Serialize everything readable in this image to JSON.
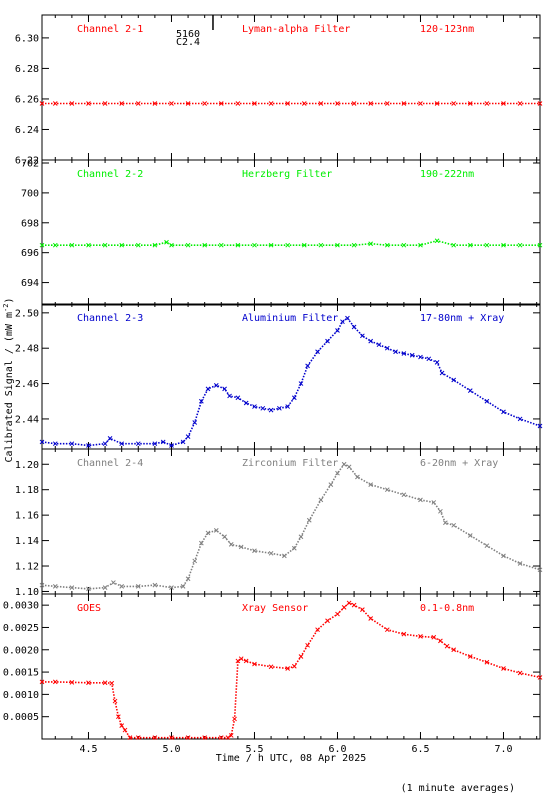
{
  "figure": {
    "xlabel": "Time / h UTC, 08 Apr 2025",
    "ylabel": "Calibrated Signal / (mW m",
    "ylabel_sup": "-2",
    "ylabel_close": ")",
    "footnote": "(1 minute averages)",
    "marker": {
      "label_1": "5160",
      "label_2": "C2.4",
      "x": 5.25
    }
  },
  "chart_data": [
    {
      "type": "scatter",
      "channel": "Channel 2-1",
      "filter": "Lyman-alpha Filter",
      "band": "120-123nm",
      "color": "#ff0000",
      "xlim": [
        4.22,
        7.22
      ],
      "ylim": [
        6.22,
        6.315
      ],
      "yticks": [
        "6.22",
        "6.24",
        "6.26",
        "6.28",
        "6.30"
      ],
      "xticks": [
        "4.5",
        "5.0",
        "5.5",
        "6.0",
        "6.5",
        "7.0"
      ],
      "points": [
        [
          4.22,
          6.257
        ],
        [
          4.3,
          6.257
        ],
        [
          4.4,
          6.257
        ],
        [
          4.5,
          6.257
        ],
        [
          4.6,
          6.257
        ],
        [
          4.7,
          6.257
        ],
        [
          4.8,
          6.257
        ],
        [
          4.9,
          6.257
        ],
        [
          5.0,
          6.257
        ],
        [
          5.1,
          6.257
        ],
        [
          5.2,
          6.257
        ],
        [
          5.3,
          6.257
        ],
        [
          5.4,
          6.257
        ],
        [
          5.5,
          6.257
        ],
        [
          5.6,
          6.257
        ],
        [
          5.7,
          6.257
        ],
        [
          5.8,
          6.257
        ],
        [
          5.9,
          6.257
        ],
        [
          6.0,
          6.257
        ],
        [
          6.1,
          6.257
        ],
        [
          6.2,
          6.257
        ],
        [
          6.3,
          6.257
        ],
        [
          6.4,
          6.257
        ],
        [
          6.5,
          6.257
        ],
        [
          6.6,
          6.257
        ],
        [
          6.7,
          6.257
        ],
        [
          6.8,
          6.257
        ],
        [
          6.9,
          6.257
        ],
        [
          7.0,
          6.257
        ],
        [
          7.1,
          6.257
        ],
        [
          7.22,
          6.257
        ]
      ]
    },
    {
      "type": "scatter",
      "channel": "Channel 2-2",
      "filter": "Herzberg Filter",
      "band": "190-222nm",
      "color": "#00ee00",
      "xlim": [
        4.22,
        7.22
      ],
      "ylim": [
        692.5,
        702.2
      ],
      "yticks": [
        "694",
        "696",
        "698",
        "700",
        "702"
      ],
      "xticks": [
        "4.5",
        "5.0",
        "5.5",
        "6.0",
        "6.5",
        "7.0"
      ],
      "points": [
        [
          4.22,
          696.5
        ],
        [
          4.3,
          696.5
        ],
        [
          4.4,
          696.5
        ],
        [
          4.5,
          696.5
        ],
        [
          4.6,
          696.5
        ],
        [
          4.7,
          696.5
        ],
        [
          4.8,
          696.5
        ],
        [
          4.9,
          696.5
        ],
        [
          4.97,
          696.7
        ],
        [
          5.0,
          696.5
        ],
        [
          5.1,
          696.5
        ],
        [
          5.2,
          696.5
        ],
        [
          5.3,
          696.5
        ],
        [
          5.4,
          696.5
        ],
        [
          5.5,
          696.5
        ],
        [
          5.6,
          696.5
        ],
        [
          5.7,
          696.5
        ],
        [
          5.8,
          696.5
        ],
        [
          5.9,
          696.5
        ],
        [
          6.0,
          696.5
        ],
        [
          6.1,
          696.5
        ],
        [
          6.2,
          696.6
        ],
        [
          6.3,
          696.5
        ],
        [
          6.4,
          696.5
        ],
        [
          6.5,
          696.5
        ],
        [
          6.6,
          696.8
        ],
        [
          6.7,
          696.5
        ],
        [
          6.8,
          696.5
        ],
        [
          6.9,
          696.5
        ],
        [
          7.0,
          696.5
        ],
        [
          7.1,
          696.5
        ],
        [
          7.22,
          696.5
        ]
      ]
    },
    {
      "type": "scatter",
      "channel": "Channel 2-3",
      "filter": "Aluminium Filter",
      "band": "17-80nm + Xray",
      "color": "#0000cc",
      "xlim": [
        4.22,
        7.22
      ],
      "ylim": [
        2.423,
        2.505
      ],
      "yticks": [
        "2.44",
        "2.46",
        "2.48",
        "2.50"
      ],
      "xticks": [
        "4.5",
        "5.0",
        "5.5",
        "6.0",
        "6.5",
        "7.0"
      ],
      "points": [
        [
          4.22,
          2.427
        ],
        [
          4.3,
          2.426
        ],
        [
          4.4,
          2.426
        ],
        [
          4.5,
          2.425
        ],
        [
          4.6,
          2.426
        ],
        [
          4.63,
          2.429
        ],
        [
          4.7,
          2.426
        ],
        [
          4.8,
          2.426
        ],
        [
          4.9,
          2.426
        ],
        [
          4.95,
          2.427
        ],
        [
          5.0,
          2.425
        ],
        [
          5.07,
          2.427
        ],
        [
          5.1,
          2.43
        ],
        [
          5.14,
          2.438
        ],
        [
          5.18,
          2.45
        ],
        [
          5.22,
          2.457
        ],
        [
          5.27,
          2.459
        ],
        [
          5.32,
          2.457
        ],
        [
          5.35,
          2.453
        ],
        [
          5.4,
          2.452
        ],
        [
          5.45,
          2.449
        ],
        [
          5.5,
          2.447
        ],
        [
          5.55,
          2.446
        ],
        [
          5.6,
          2.445
        ],
        [
          5.65,
          2.446
        ],
        [
          5.7,
          2.447
        ],
        [
          5.74,
          2.452
        ],
        [
          5.78,
          2.46
        ],
        [
          5.82,
          2.47
        ],
        [
          5.88,
          2.478
        ],
        [
          5.94,
          2.484
        ],
        [
          6.0,
          2.49
        ],
        [
          6.03,
          2.495
        ],
        [
          6.06,
          2.497
        ],
        [
          6.1,
          2.492
        ],
        [
          6.15,
          2.487
        ],
        [
          6.2,
          2.484
        ],
        [
          6.25,
          2.482
        ],
        [
          6.3,
          2.48
        ],
        [
          6.35,
          2.478
        ],
        [
          6.4,
          2.477
        ],
        [
          6.45,
          2.476
        ],
        [
          6.5,
          2.475
        ],
        [
          6.55,
          2.474
        ],
        [
          6.6,
          2.472
        ],
        [
          6.63,
          2.466
        ],
        [
          6.7,
          2.462
        ],
        [
          6.8,
          2.456
        ],
        [
          6.9,
          2.45
        ],
        [
          7.0,
          2.444
        ],
        [
          7.1,
          2.44
        ],
        [
          7.22,
          2.436
        ]
      ]
    },
    {
      "type": "scatter",
      "channel": "Channel 2-4",
      "filter": "Zirconium Filter",
      "band": "6-20nm + Xray",
      "color": "#808080",
      "xlim": [
        4.22,
        7.22
      ],
      "ylim": [
        1.098,
        1.212
      ],
      "yticks": [
        "1.10",
        "1.12",
        "1.14",
        "1.16",
        "1.18",
        "1.20"
      ],
      "xticks": [
        "4.5",
        "5.0",
        "5.5",
        "6.0",
        "6.5",
        "7.0"
      ],
      "points": [
        [
          4.22,
          1.105
        ],
        [
          4.3,
          1.104
        ],
        [
          4.4,
          1.103
        ],
        [
          4.5,
          1.102
        ],
        [
          4.6,
          1.103
        ],
        [
          4.65,
          1.107
        ],
        [
          4.7,
          1.104
        ],
        [
          4.8,
          1.104
        ],
        [
          4.9,
          1.105
        ],
        [
          5.0,
          1.103
        ],
        [
          5.07,
          1.104
        ],
        [
          5.1,
          1.11
        ],
        [
          5.14,
          1.124
        ],
        [
          5.18,
          1.138
        ],
        [
          5.22,
          1.146
        ],
        [
          5.27,
          1.148
        ],
        [
          5.32,
          1.143
        ],
        [
          5.36,
          1.137
        ],
        [
          5.42,
          1.135
        ],
        [
          5.5,
          1.132
        ],
        [
          5.6,
          1.13
        ],
        [
          5.68,
          1.128
        ],
        [
          5.74,
          1.134
        ],
        [
          5.78,
          1.143
        ],
        [
          5.83,
          1.156
        ],
        [
          5.9,
          1.172
        ],
        [
          5.96,
          1.184
        ],
        [
          6.0,
          1.193
        ],
        [
          6.04,
          1.2
        ],
        [
          6.07,
          1.198
        ],
        [
          6.12,
          1.19
        ],
        [
          6.2,
          1.184
        ],
        [
          6.3,
          1.18
        ],
        [
          6.4,
          1.176
        ],
        [
          6.5,
          1.172
        ],
        [
          6.58,
          1.17
        ],
        [
          6.62,
          1.163
        ],
        [
          6.65,
          1.154
        ],
        [
          6.7,
          1.152
        ],
        [
          6.8,
          1.144
        ],
        [
          6.9,
          1.136
        ],
        [
          7.0,
          1.128
        ],
        [
          7.1,
          1.122
        ],
        [
          7.22,
          1.117
        ]
      ]
    },
    {
      "type": "scatter",
      "channel": "GOES",
      "filter": "Xray Sensor",
      "band": "0.1-0.8nm",
      "color": "#ff0000",
      "xlim": [
        4.22,
        7.22
      ],
      "ylim": [
        0.0,
        0.00325
      ],
      "yticks": [
        "0.0005",
        "0.0010",
        "0.0015",
        "0.0020",
        "0.0025",
        "0.0030"
      ],
      "xticks": [
        "4.5",
        "5.0",
        "5.5",
        "6.0",
        "6.5",
        "7.0"
      ],
      "points": [
        [
          4.22,
          0.00128
        ],
        [
          4.3,
          0.00128
        ],
        [
          4.4,
          0.00127
        ],
        [
          4.5,
          0.00126
        ],
        [
          4.6,
          0.00126
        ],
        [
          4.64,
          0.00125
        ],
        [
          4.66,
          0.00085
        ],
        [
          4.68,
          0.0005
        ],
        [
          4.7,
          0.0003
        ],
        [
          4.72,
          0.0002
        ],
        [
          4.75,
          3e-05
        ],
        [
          4.8,
          3e-05
        ],
        [
          4.9,
          3e-05
        ],
        [
          5.0,
          3e-05
        ],
        [
          5.1,
          3e-05
        ],
        [
          5.2,
          3e-05
        ],
        [
          5.3,
          3e-05
        ],
        [
          5.34,
          3e-05
        ],
        [
          5.36,
          8e-05
        ],
        [
          5.38,
          0.00045
        ],
        [
          5.4,
          0.00175
        ],
        [
          5.42,
          0.0018
        ],
        [
          5.45,
          0.00175
        ],
        [
          5.5,
          0.00168
        ],
        [
          5.6,
          0.00162
        ],
        [
          5.7,
          0.00158
        ],
        [
          5.74,
          0.00163
        ],
        [
          5.78,
          0.00185
        ],
        [
          5.82,
          0.0021
        ],
        [
          5.88,
          0.00245
        ],
        [
          5.94,
          0.00265
        ],
        [
          6.0,
          0.0028
        ],
        [
          6.04,
          0.00295
        ],
        [
          6.07,
          0.00305
        ],
        [
          6.1,
          0.003
        ],
        [
          6.15,
          0.0029
        ],
        [
          6.2,
          0.0027
        ],
        [
          6.3,
          0.00245
        ],
        [
          6.4,
          0.00235
        ],
        [
          6.5,
          0.0023
        ],
        [
          6.58,
          0.00228
        ],
        [
          6.62,
          0.0022
        ],
        [
          6.66,
          0.00208
        ],
        [
          6.7,
          0.002
        ],
        [
          6.8,
          0.00185
        ],
        [
          6.9,
          0.00172
        ],
        [
          7.0,
          0.00158
        ],
        [
          7.1,
          0.00148
        ],
        [
          7.22,
          0.00138
        ]
      ]
    }
  ]
}
